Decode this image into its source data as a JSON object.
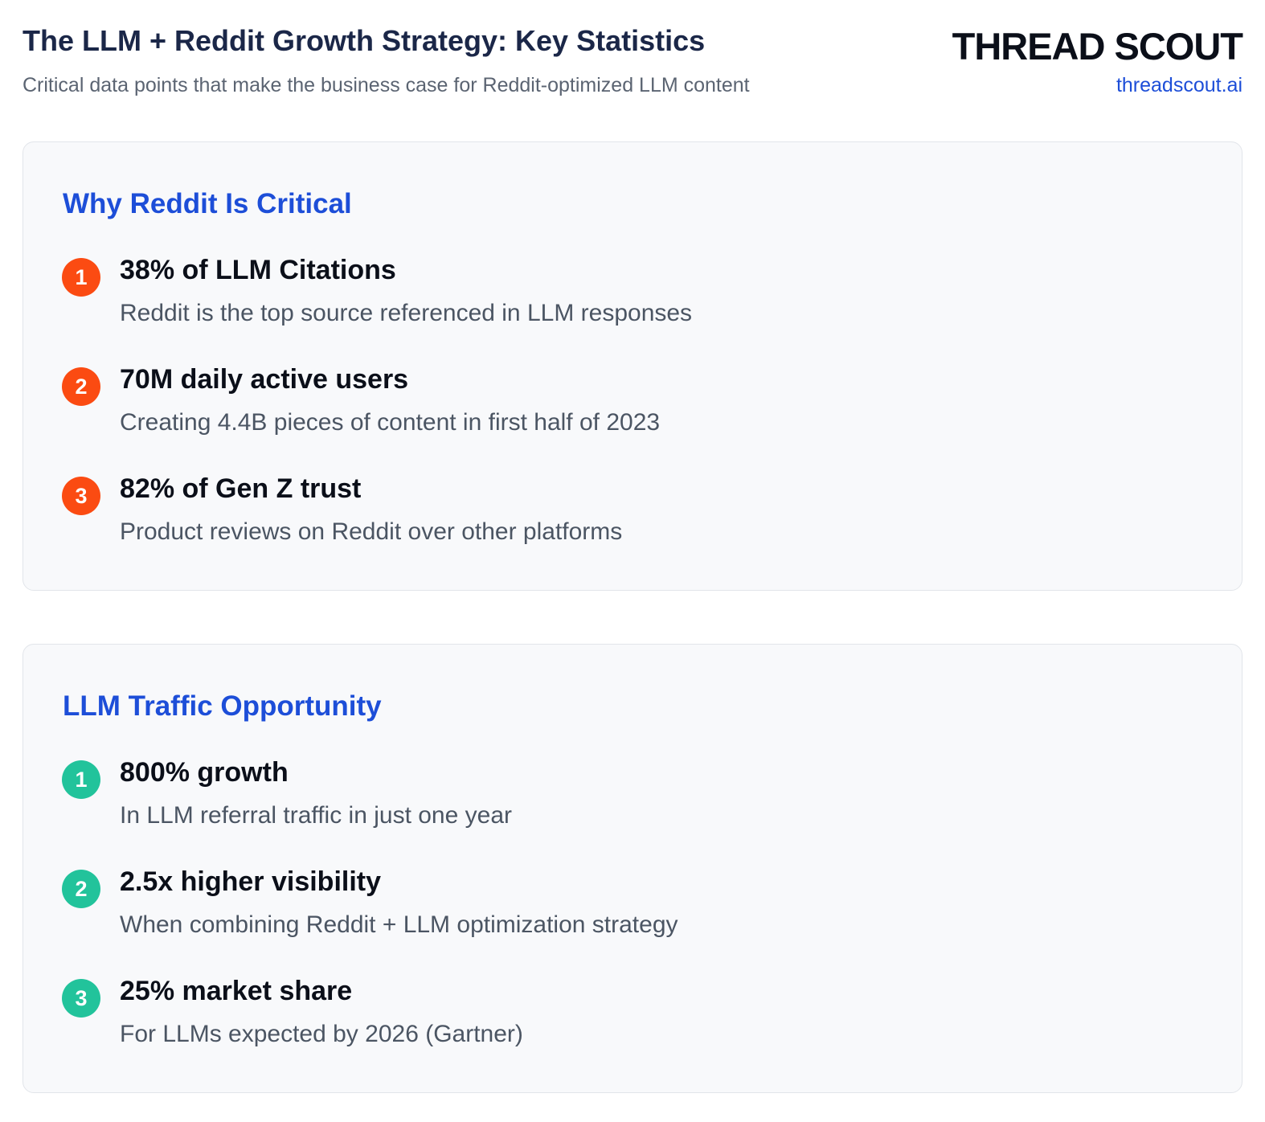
{
  "header": {
    "title": "The LLM + Reddit Growth Strategy: Key Statistics",
    "subtitle": "Critical data points that make the business case for Reddit-optimized LLM content",
    "brand": "THREAD SCOUT",
    "url": "threadscout.ai"
  },
  "sections": [
    {
      "title": "Why Reddit Is Critical",
      "items": [
        {
          "number": "1",
          "heading": "38% of LLM Citations",
          "description": "Reddit is the top source referenced in LLM responses"
        },
        {
          "number": "2",
          "heading": "70M daily active users",
          "description": "Creating 4.4B pieces of content in first half of 2023"
        },
        {
          "number": "3",
          "heading": "82% of Gen Z trust",
          "description": "Product reviews on Reddit over other platforms"
        }
      ]
    },
    {
      "title": "LLM Traffic Opportunity",
      "items": [
        {
          "number": "1",
          "heading": "800% growth",
          "description": "In LLM referral traffic in just one year"
        },
        {
          "number": "2",
          "heading": "2.5x higher visibility",
          "description": "When combining Reddit + LLM optimization strategy"
        },
        {
          "number": "3",
          "heading": "25% market share",
          "description": "For LLMs expected by 2026 (Gartner)"
        }
      ]
    }
  ]
}
